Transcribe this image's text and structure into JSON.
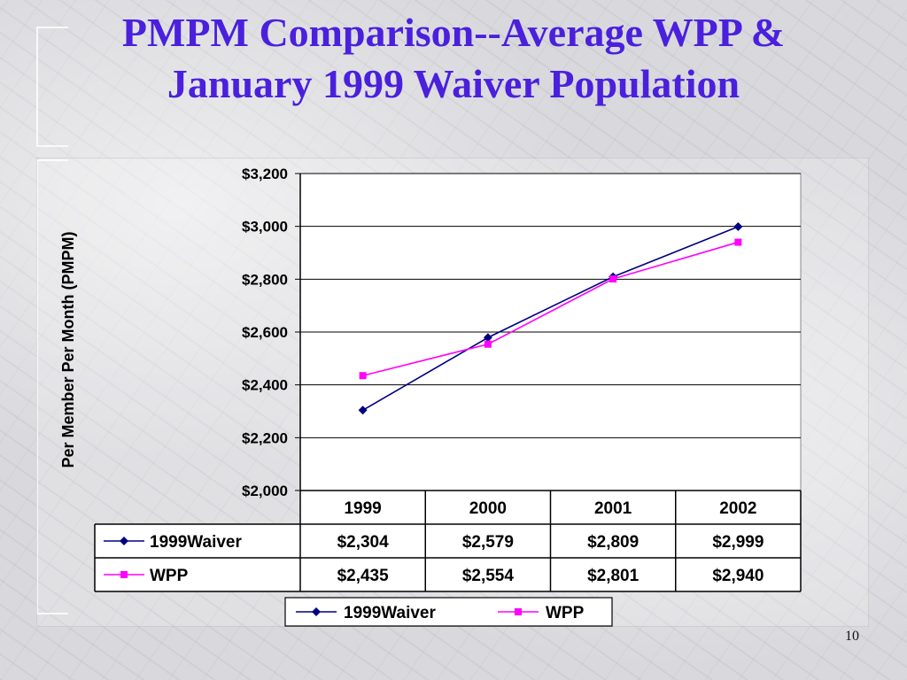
{
  "slide": {
    "title_line1": "PMPM Comparison--Average WPP &",
    "title_line2": "January 1999 Waiver Population",
    "slide_number": "10"
  },
  "colors": {
    "title": "#4a20dd",
    "waiver_series": "#000080",
    "wpp_series": "#ff00ff"
  },
  "chart_data": {
    "type": "line",
    "categories": [
      "1999",
      "2000",
      "2001",
      "2002"
    ],
    "series": [
      {
        "name": "1999Waiver",
        "values": [
          2304,
          2579,
          2809,
          2999
        ],
        "labels": [
          "$2,304",
          "$2,579",
          "$2,809",
          "$2,999"
        ],
        "color": "#000080",
        "marker": "diamond"
      },
      {
        "name": "WPP",
        "values": [
          2435,
          2554,
          2801,
          2940
        ],
        "labels": [
          "$2,435",
          "$2,554",
          "$2,801",
          "$2,940"
        ],
        "color": "#ff00ff",
        "marker": "square"
      }
    ],
    "ylabel": "Per Member Per Month (PMPM)",
    "xlabel": "",
    "ylim": [
      2000,
      3200
    ],
    "yticks": [
      2000,
      2200,
      2400,
      2600,
      2800,
      3000,
      3200
    ],
    "ytick_labels": [
      "$2,000",
      "$2,200",
      "$2,400",
      "$2,600",
      "$2,800",
      "$3,000",
      "$3,200"
    ],
    "grid": true,
    "data_table": true,
    "legend": {
      "position": "bottom",
      "entries": [
        "1999Waiver",
        "WPP"
      ]
    }
  }
}
